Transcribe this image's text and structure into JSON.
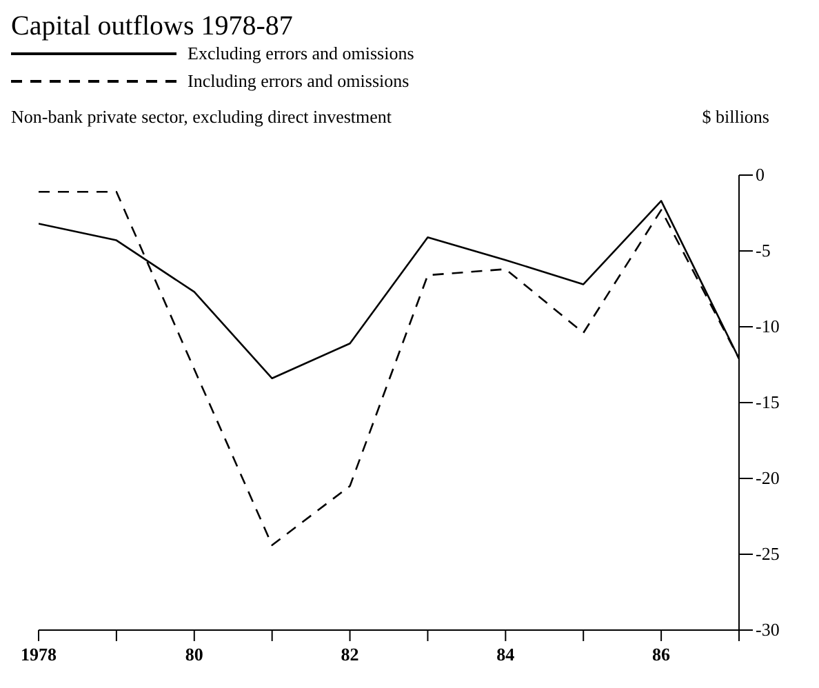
{
  "chart_data": {
    "type": "line",
    "title": "Capital outflows 1978-87",
    "subtitle": "Non-bank private sector, excluding direct investment",
    "ylabel": "$ billions",
    "x": [
      1978,
      1979,
      1980,
      1981,
      1982,
      1983,
      1984,
      1985,
      1986,
      1987
    ],
    "series": [
      {
        "name": "Excluding errors and omissions",
        "color": "#000000",
        "line_style": "solid",
        "values": [
          -3.2,
          -4.3,
          -7.7,
          -13.4,
          -11.1,
          -4.1,
          -5.6,
          -7.2,
          -1.7,
          -12.1
        ]
      },
      {
        "name": "Including errors and omissions",
        "color": "#000000",
        "line_style": "dashed",
        "values": [
          -1.1,
          -1.1,
          -12.8,
          -24.4,
          -20.5,
          -6.6,
          -6.2,
          -10.4,
          -2.3,
          -12.1
        ]
      }
    ],
    "xlim": [
      1978,
      1987
    ],
    "xticks": [
      1978,
      {
        "value": 1979,
        "label": null
      },
      {
        "value": 1980,
        "label": "80"
      },
      {
        "value": 1981,
        "label": null
      },
      {
        "value": 1982,
        "label": "82"
      },
      {
        "value": 1983,
        "label": null
      },
      {
        "value": 1984,
        "label": "84"
      },
      {
        "value": 1985,
        "label": null
      },
      {
        "value": 1986,
        "label": "86"
      },
      {
        "value": 1987,
        "label": null
      }
    ],
    "ylim": [
      -30,
      0
    ],
    "yticks": [
      0,
      -5,
      -10,
      -15,
      -20,
      -25,
      -30
    ],
    "legend": "top left",
    "grid": false,
    "marker": "none"
  }
}
